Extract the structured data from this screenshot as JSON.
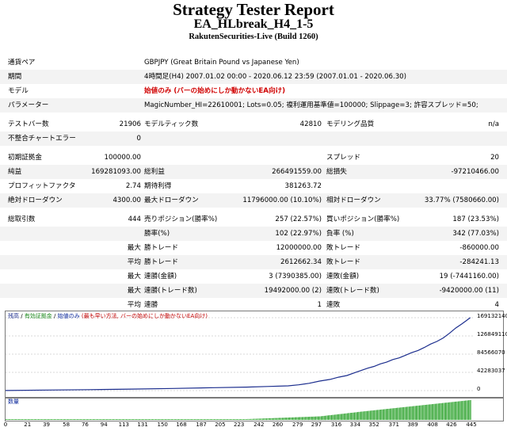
{
  "report": {
    "title": "Strategy Tester Report",
    "subtitle": "EA_HLbreak_H4_1-5",
    "build": "RakutenSecurities-Live (Build 1260)"
  },
  "info": {
    "pair_label": "通貨ペア",
    "pair_value": "GBPJPY (Great Britain Pound vs Japanese Yen)",
    "period_label": "期間",
    "period_value": "4時間足(H4) 2007.01.02 00:00 - 2020.06.12 23:59 (2007.01.01 - 2020.06.30)",
    "model_label": "モデル",
    "model_value": "始値のみ (バーの始めにしか動かないEA向け)",
    "params_label": "パラメーター",
    "params_value": "MagicNumber_HI=22610001; Lots=0.05; 複利運用基準値=100000; Slippage=3; 許容スプレッド=50;"
  },
  "stats": {
    "bars_label": "テストバー数",
    "bars_value": "21906",
    "ticks_label": "モデルティック数",
    "ticks_value": "42810",
    "quality_label": "モデリング品質",
    "quality_value": "n/a",
    "mismatch_label": "不整合チャートエラー",
    "mismatch_value": "0",
    "deposit_label": "初期証拠金",
    "deposit_value": "100000.00",
    "spread_label": "スプレッド",
    "spread_value": "20",
    "net_label": "純益",
    "net_value": "169281093.00",
    "gross_profit_label": "総利益",
    "gross_profit_value": "266491559.00",
    "gross_loss_label": "総損失",
    "gross_loss_value": "-97210466.00",
    "pf_label": "プロフィットファクタ",
    "pf_value": "2.74",
    "expected_label": "期待利得",
    "expected_value": "381263.72",
    "abs_dd_label": "絶対ドローダウン",
    "abs_dd_value": "4300.00",
    "max_dd_label": "最大ドローダウン",
    "max_dd_value": "11796000.00 (10.10%)",
    "rel_dd_label": "相対ドローダウン",
    "rel_dd_value": "33.77% (7580660.00)",
    "trades_label": "総取引数",
    "trades_value": "444",
    "short_label": "売りポジション(勝率%)",
    "short_value": "257 (22.57%)",
    "long_label": "買いポジション(勝率%)",
    "long_value": "187 (23.53%)",
    "win_pct_label": "勝率(%)",
    "win_pct_value": "102 (22.97%)",
    "loss_pct_label": "負率 (%)",
    "loss_pct_value": "342 (77.03%)",
    "max_word": "最大",
    "avg_word": "平均",
    "max_win_label": "勝トレード",
    "max_win_value": "12000000.00",
    "max_loss_label": "敗トレード",
    "max_loss_value": "-860000.00",
    "avg_win_label": "勝トレード",
    "avg_win_value": "2612662.34",
    "avg_loss_label": "敗トレード",
    "avg_loss_value": "-284241.13",
    "cons_win_amt_label": "連勝(金額)",
    "cons_win_amt_value": "3 (7390385.00)",
    "cons_loss_amt_label": "連敗(金額)",
    "cons_loss_amt_value": "19 (-7441160.00)",
    "cons_win_cnt_label": "連勝(トレード数)",
    "cons_win_cnt_value": "19492000.00 (2)",
    "cons_loss_cnt_label": "連敗(トレード数)",
    "cons_loss_cnt_value": "-9420000.00 (11)",
    "avg_cons_win_label": "連勝",
    "avg_cons_win_value": "1",
    "avg_cons_loss_label": "連敗",
    "avg_cons_loss_value": "4"
  },
  "chart_legend": {
    "a": "残高",
    "sep1": " / ",
    "b": "有効証拠金",
    "sep2": " / ",
    "c": "始値のみ",
    "d": " (最も早い方法, バーの始めにしか動かないEA向け)"
  },
  "volume_legend": "数量",
  "colors": {
    "balance_line": "#1c2e8e",
    "volume_bars": "#3aa83a",
    "model_text": "#d00000"
  },
  "chart_data": {
    "type": "line",
    "title": "",
    "x_ticks": [
      "0",
      "21",
      "39",
      "58",
      "76",
      "94",
      "113",
      "131",
      "150",
      "168",
      "187",
      "205",
      "223",
      "242",
      "260",
      "279",
      "297",
      "316",
      "334",
      "352",
      "371",
      "389",
      "408",
      "426",
      "445"
    ],
    "y_ticks": [
      "169132140",
      "126849110",
      "84566070",
      "42283037",
      "0"
    ],
    "ylim": [
      0,
      169132140
    ],
    "xlim": [
      0,
      448
    ],
    "series": [
      {
        "values_x": [
          0,
          40,
          80,
          120,
          160,
          200,
          230,
          250,
          270,
          280,
          290,
          300,
          310,
          318,
          326,
          334,
          340,
          346,
          352,
          358,
          364,
          370,
          376,
          382,
          388,
          394,
          400,
          406,
          412,
          418,
          424,
          430,
          436,
          440,
          444
        ],
        "values_y": [
          100000,
          1200000,
          2200000,
          3500000,
          5000000,
          6800000,
          8000000,
          9500000,
          11000000,
          13500000,
          17000000,
          22000000,
          26000000,
          31000000,
          35000000,
          42000000,
          47000000,
          52000000,
          56000000,
          62000000,
          66000000,
          72000000,
          76000000,
          82000000,
          88000000,
          93000000,
          100000000,
          108000000,
          114000000,
          122000000,
          133000000,
          145000000,
          155000000,
          162000000,
          169281093
        ]
      }
    ]
  }
}
